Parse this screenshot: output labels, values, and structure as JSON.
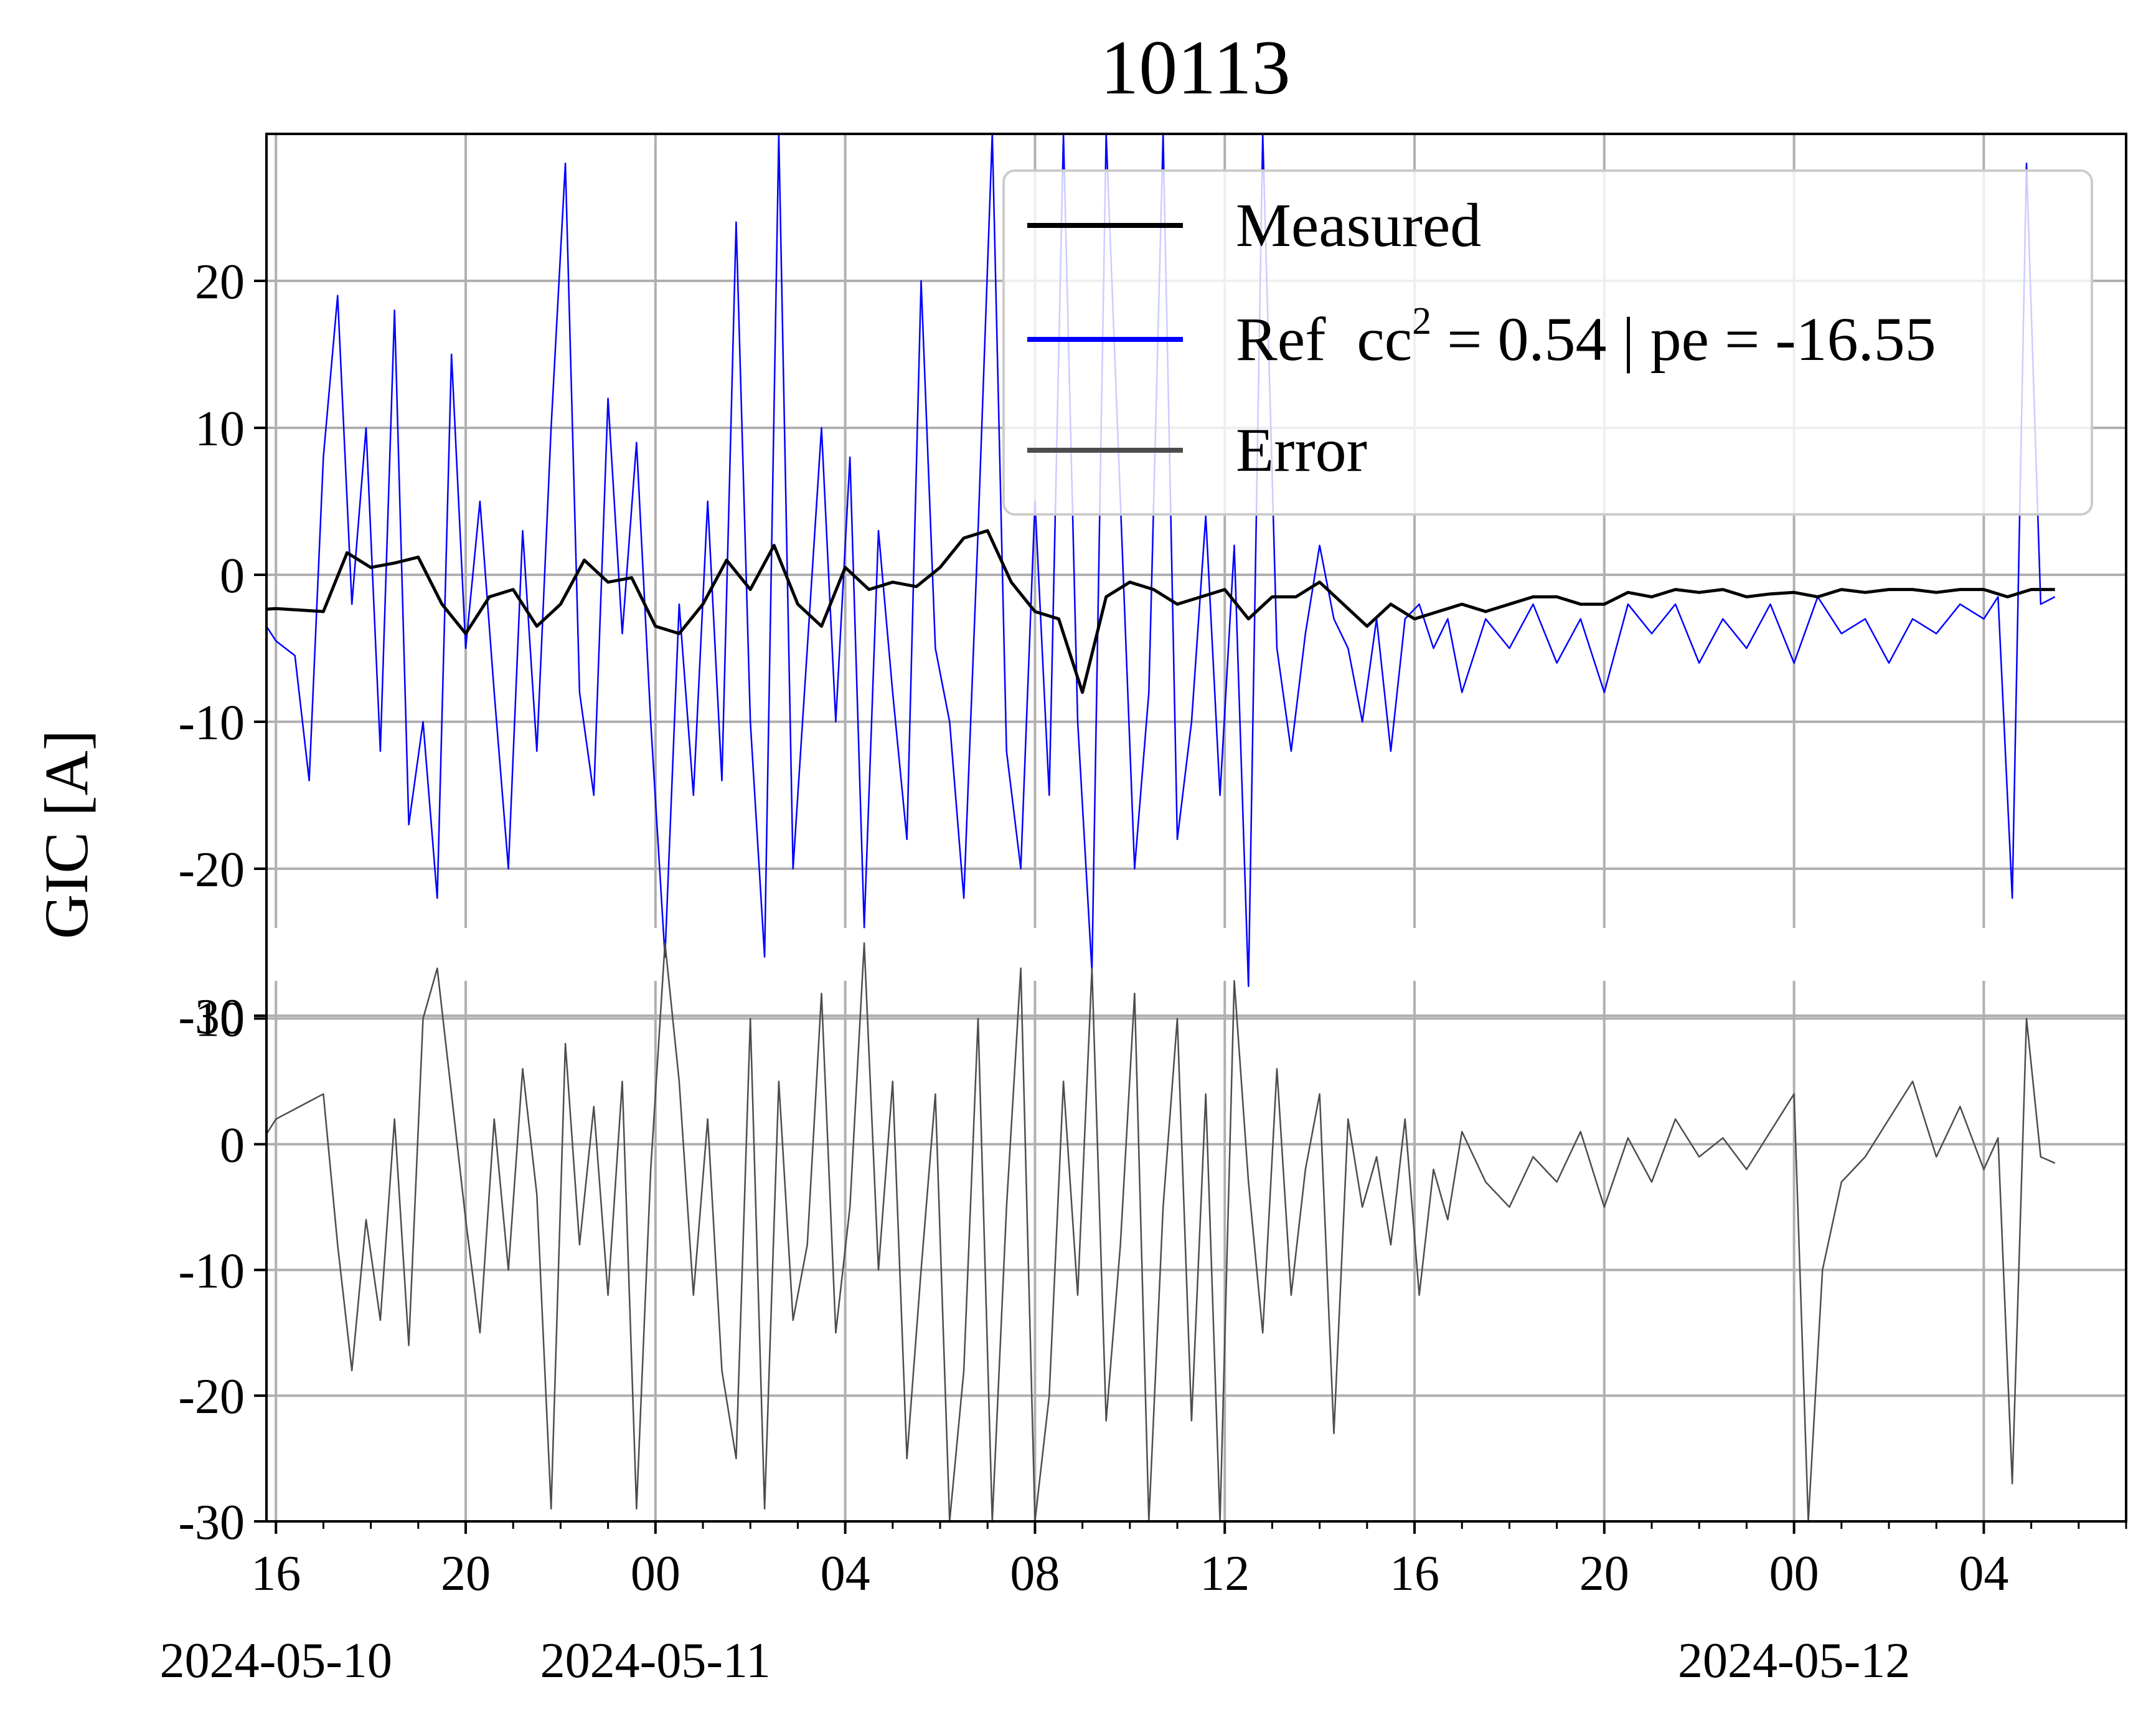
{
  "chart_data": {
    "type": "line",
    "title": "10113",
    "ylabel": "GIC [A]",
    "xlabel": "",
    "x_range_hours": [
      -5.5,
      27.5
    ],
    "x_ticks": [
      {
        "hour": -8,
        "label": "16",
        "date": "2024-05-10"
      },
      {
        "hour": -4,
        "label": "20",
        "date": ""
      },
      {
        "hour": 0,
        "label": "00",
        "date": "2024-05-11"
      },
      {
        "hour": 4,
        "label": "04",
        "date": ""
      },
      {
        "hour": 8,
        "label": "08",
        "date": ""
      },
      {
        "hour": 12,
        "label": "12",
        "date": ""
      },
      {
        "hour": 16,
        "label": "16",
        "date": ""
      },
      {
        "hour": 20,
        "label": "20",
        "date": ""
      },
      {
        "hour": 24,
        "label": "00",
        "date": "2024-05-12"
      },
      {
        "hour": 28,
        "label": "04",
        "date": ""
      }
    ],
    "upper_panel": {
      "ylim": [
        -30,
        30
      ],
      "yticks": [
        20,
        10,
        0,
        -10,
        -20,
        -30
      ],
      "ytick_labels": [
        "20",
        "10",
        "0",
        "-10",
        "-20",
        "-30"
      ]
    },
    "lower_panel": {
      "ylim": [
        -30,
        13
      ],
      "yticks": [
        10,
        0,
        -10,
        -20,
        -30
      ],
      "ytick_labels": [
        "10",
        "0",
        "-10",
        "-20",
        "-30"
      ]
    },
    "grid": true,
    "legend_position": "upper right",
    "legend": [
      {
        "label": "Measured",
        "color": "#000000"
      },
      {
        "label": "Ref  cc",
        "sup": "2",
        "suffix": " = 0.54 | pe = -16.55",
        "color": "#0000ff"
      },
      {
        "label": "Error",
        "color": "#4d4d4d"
      }
    ],
    "series": [
      {
        "name": "Measured",
        "color": "#000000",
        "panel": "upper",
        "x": [
          -9,
          -8.5,
          -8,
          -7.5,
          -7,
          -6.5,
          -6,
          -5.5,
          -5,
          -4.5,
          -4,
          -3.5,
          -3,
          -2.5,
          -2,
          -1.5,
          -1,
          -0.5,
          0,
          0.5,
          1,
          1.5,
          2,
          2.5,
          3,
          3.5,
          4,
          4.5,
          5,
          5.5,
          6,
          6.5,
          7,
          7.5,
          8,
          8.5,
          9,
          9.5,
          10,
          10.5,
          11,
          11.5,
          12,
          12.5,
          13,
          13.5,
          14,
          14.5,
          15,
          15.5,
          16,
          16.5,
          17,
          17.5,
          18,
          18.5,
          19,
          19.5,
          20,
          20.5,
          21,
          21.5,
          22,
          22.5,
          23,
          23.5,
          24,
          24.5,
          25,
          25.5,
          26,
          26.5,
          27,
          27.5,
          28,
          28.5,
          29,
          29.5
        ],
        "y": [
          -2.2,
          -2.4,
          -2.3,
          -2.4,
          -2.5,
          1.5,
          0.5,
          0.8,
          1.2,
          -2.0,
          -4.0,
          -1.5,
          -1.0,
          -3.5,
          -2.0,
          1.0,
          -0.5,
          -0.2,
          -3.5,
          -4.0,
          -2.0,
          1.0,
          -1.0,
          2.0,
          -2.0,
          -3.5,
          0.5,
          -1.0,
          -0.5,
          -0.8,
          0.5,
          2.5,
          3.0,
          -0.5,
          -2.5,
          -3.0,
          -8.0,
          -1.5,
          -0.5,
          -1.0,
          -2.0,
          -1.5,
          -1.0,
          -3.0,
          -1.5,
          -1.5,
          -0.5,
          -2.0,
          -3.5,
          -2.0,
          -3.0,
          -2.5,
          -2.0,
          -2.5,
          -2.0,
          -1.5,
          -1.5,
          -2.0,
          -2.0,
          -1.2,
          -1.5,
          -1.0,
          -1.2,
          -1.0,
          -1.5,
          -1.3,
          -1.2,
          -1.5,
          -1.0,
          -1.2,
          -1.0,
          -1.0,
          -1.2,
          -1.0,
          -1.0,
          -1.5,
          -1.0,
          -1.0
        ]
      },
      {
        "name": "Ref  cc² = 0.54 | pe = -16.55",
        "color": "#0000ff",
        "panel": "upper",
        "x": [
          -9,
          -8.5,
          -8,
          -7.6,
          -7.3,
          -7.0,
          -6.7,
          -6.4,
          -6.1,
          -5.8,
          -5.5,
          -5.2,
          -4.9,
          -4.6,
          -4.3,
          -4.0,
          -3.7,
          -3.4,
          -3.1,
          -2.8,
          -2.5,
          -2.2,
          -1.9,
          -1.6,
          -1.3,
          -1.0,
          -0.7,
          -0.4,
          -0.1,
          0.2,
          0.5,
          0.8,
          1.1,
          1.4,
          1.7,
          2.0,
          2.3,
          2.6,
          2.9,
          3.2,
          3.5,
          3.8,
          4.1,
          4.4,
          4.7,
          5.0,
          5.3,
          5.6,
          5.9,
          6.2,
          6.5,
          6.8,
          7.1,
          7.4,
          7.7,
          8.0,
          8.3,
          8.6,
          8.9,
          9.2,
          9.5,
          9.8,
          10.1,
          10.4,
          10.7,
          11.0,
          11.3,
          11.6,
          11.9,
          12.2,
          12.5,
          12.8,
          13.1,
          13.4,
          13.7,
          14.0,
          14.3,
          14.6,
          14.9,
          15.2,
          15.5,
          15.8,
          16.1,
          16.4,
          16.7,
          17.0,
          17.5,
          18.0,
          18.5,
          19.0,
          19.5,
          20.0,
          20.5,
          21.0,
          21.5,
          22.0,
          22.5,
          23.0,
          23.5,
          24.0,
          24.5,
          25.0,
          25.5,
          26.0,
          26.5,
          27.0,
          27.5,
          28.0,
          28.3,
          28.6,
          28.9,
          29.2,
          29.5
        ],
        "y": [
          1.0,
          -2.0,
          -4.5,
          -5.5,
          -14.0,
          8.0,
          19.0,
          -2.0,
          10.0,
          -12.0,
          18.0,
          -17.0,
          -10.0,
          -22.0,
          15.0,
          -5.0,
          5.0,
          -8.0,
          -20.0,
          3.0,
          -12.0,
          10.0,
          28.0,
          -8.0,
          -15.0,
          12.0,
          -4.0,
          9.0,
          -10.0,
          -26.0,
          -2.0,
          -15.0,
          5.0,
          -14.0,
          24.0,
          -10.0,
          -26.0,
          30.0,
          -20.0,
          -5.0,
          10.0,
          -10.0,
          8.0,
          -24.0,
          3.0,
          -8.0,
          -18.0,
          20.0,
          -5.0,
          -10.0,
          -22.0,
          3.0,
          30.0,
          -12.0,
          -20.0,
          5.0,
          -15.0,
          30.0,
          -10.0,
          -27.0,
          30.0,
          5.0,
          -20.0,
          -8.0,
          30.0,
          -18.0,
          -10.0,
          4.0,
          -15.0,
          2.0,
          -28.0,
          30.0,
          -5.0,
          -12.0,
          -4.0,
          2.0,
          -3.0,
          -5.0,
          -10.0,
          -3.0,
          -12.0,
          -3.0,
          -2.0,
          -5.0,
          -3.0,
          -8.0,
          -3.0,
          -5.0,
          -2.0,
          -6.0,
          -3.0,
          -8.0,
          -2.0,
          -4.0,
          -2.0,
          -6.0,
          -3.0,
          -5.0,
          -2.0,
          -6.0,
          -1.5,
          -4.0,
          -3.0,
          -6.0,
          -3.0,
          -4.0,
          -2.0,
          -3.0,
          -1.5,
          -22.0,
          28.0,
          -2.0,
          -1.5
        ]
      },
      {
        "name": "Error",
        "color": "#4d4d4d",
        "panel": "lower",
        "x": [
          -9,
          -8.5,
          -8,
          -7.5,
          -7.0,
          -6.7,
          -6.4,
          -6.1,
          -5.8,
          -5.5,
          -5.2,
          -4.9,
          -4.6,
          -4.3,
          -4.0,
          -3.7,
          -3.4,
          -3.1,
          -2.8,
          -2.5,
          -2.2,
          -1.9,
          -1.6,
          -1.3,
          -1.0,
          -0.7,
          -0.4,
          -0.1,
          0.2,
          0.5,
          0.8,
          1.1,
          1.4,
          1.7,
          2.0,
          2.3,
          2.6,
          2.9,
          3.2,
          3.5,
          3.8,
          4.1,
          4.4,
          4.7,
          5.0,
          5.3,
          5.6,
          5.9,
          6.2,
          6.5,
          6.8,
          7.1,
          7.4,
          7.7,
          8.0,
          8.3,
          8.6,
          8.9,
          9.2,
          9.5,
          9.8,
          10.1,
          10.4,
          10.7,
          11.0,
          11.3,
          11.6,
          11.9,
          12.2,
          12.5,
          12.8,
          13.1,
          13.4,
          13.7,
          14.0,
          14.3,
          14.6,
          14.9,
          15.2,
          15.5,
          15.8,
          16.1,
          16.4,
          16.7,
          17.0,
          17.5,
          18.0,
          18.5,
          19.0,
          19.5,
          20.0,
          20.5,
          21.0,
          21.5,
          22.0,
          22.5,
          23.0,
          23.5,
          24.0,
          24.3,
          24.6,
          25.0,
          25.5,
          26.0,
          26.5,
          27.0,
          27.5,
          28.0,
          28.3,
          28.6,
          28.9,
          29.2,
          29.5
        ],
        "y": [
          -3.0,
          -1.0,
          2.0,
          3.0,
          4.0,
          -8.0,
          -18.0,
          -6.0,
          -14.0,
          2.0,
          -16.0,
          10.0,
          14.0,
          4.0,
          -6.0,
          -15.0,
          2.0,
          -10.0,
          6.0,
          -4.0,
          -29.0,
          8.0,
          -8.0,
          3.0,
          -12.0,
          5.0,
          -29.0,
          -2.0,
          16.0,
          5.0,
          -12.0,
          2.0,
          -18.0,
          -25.0,
          10.0,
          -29.0,
          5.0,
          -14.0,
          -8.0,
          12.0,
          -15.0,
          -5.0,
          16.0,
          -10.0,
          5.0,
          -25.0,
          -10.0,
          4.0,
          -30.0,
          -18.0,
          10.0,
          -30.0,
          -5.0,
          14.0,
          -30.0,
          -20.0,
          5.0,
          -12.0,
          14.0,
          -22.0,
          -8.0,
          12.0,
          -30.0,
          -5.0,
          10.0,
          -22.0,
          4.0,
          -30.0,
          13.0,
          -3.0,
          -15.0,
          6.0,
          -12.0,
          -2.0,
          4.0,
          -23.0,
          2.0,
          -5.0,
          -1.0,
          -8.0,
          2.0,
          -12.0,
          -2.0,
          -6.0,
          1.0,
          -3.0,
          -5.0,
          -1.0,
          -3.0,
          1.0,
          -5.0,
          0.5,
          -3.0,
          2.0,
          -1.0,
          0.5,
          -2.0,
          1.0,
          4.0,
          -30.0,
          -10.0,
          -3.0,
          -1.0,
          2.0,
          5.0,
          -1.0,
          3.0,
          -2.0,
          0.5,
          -27.0,
          10.0,
          -1.0,
          -1.5
        ]
      }
    ]
  }
}
